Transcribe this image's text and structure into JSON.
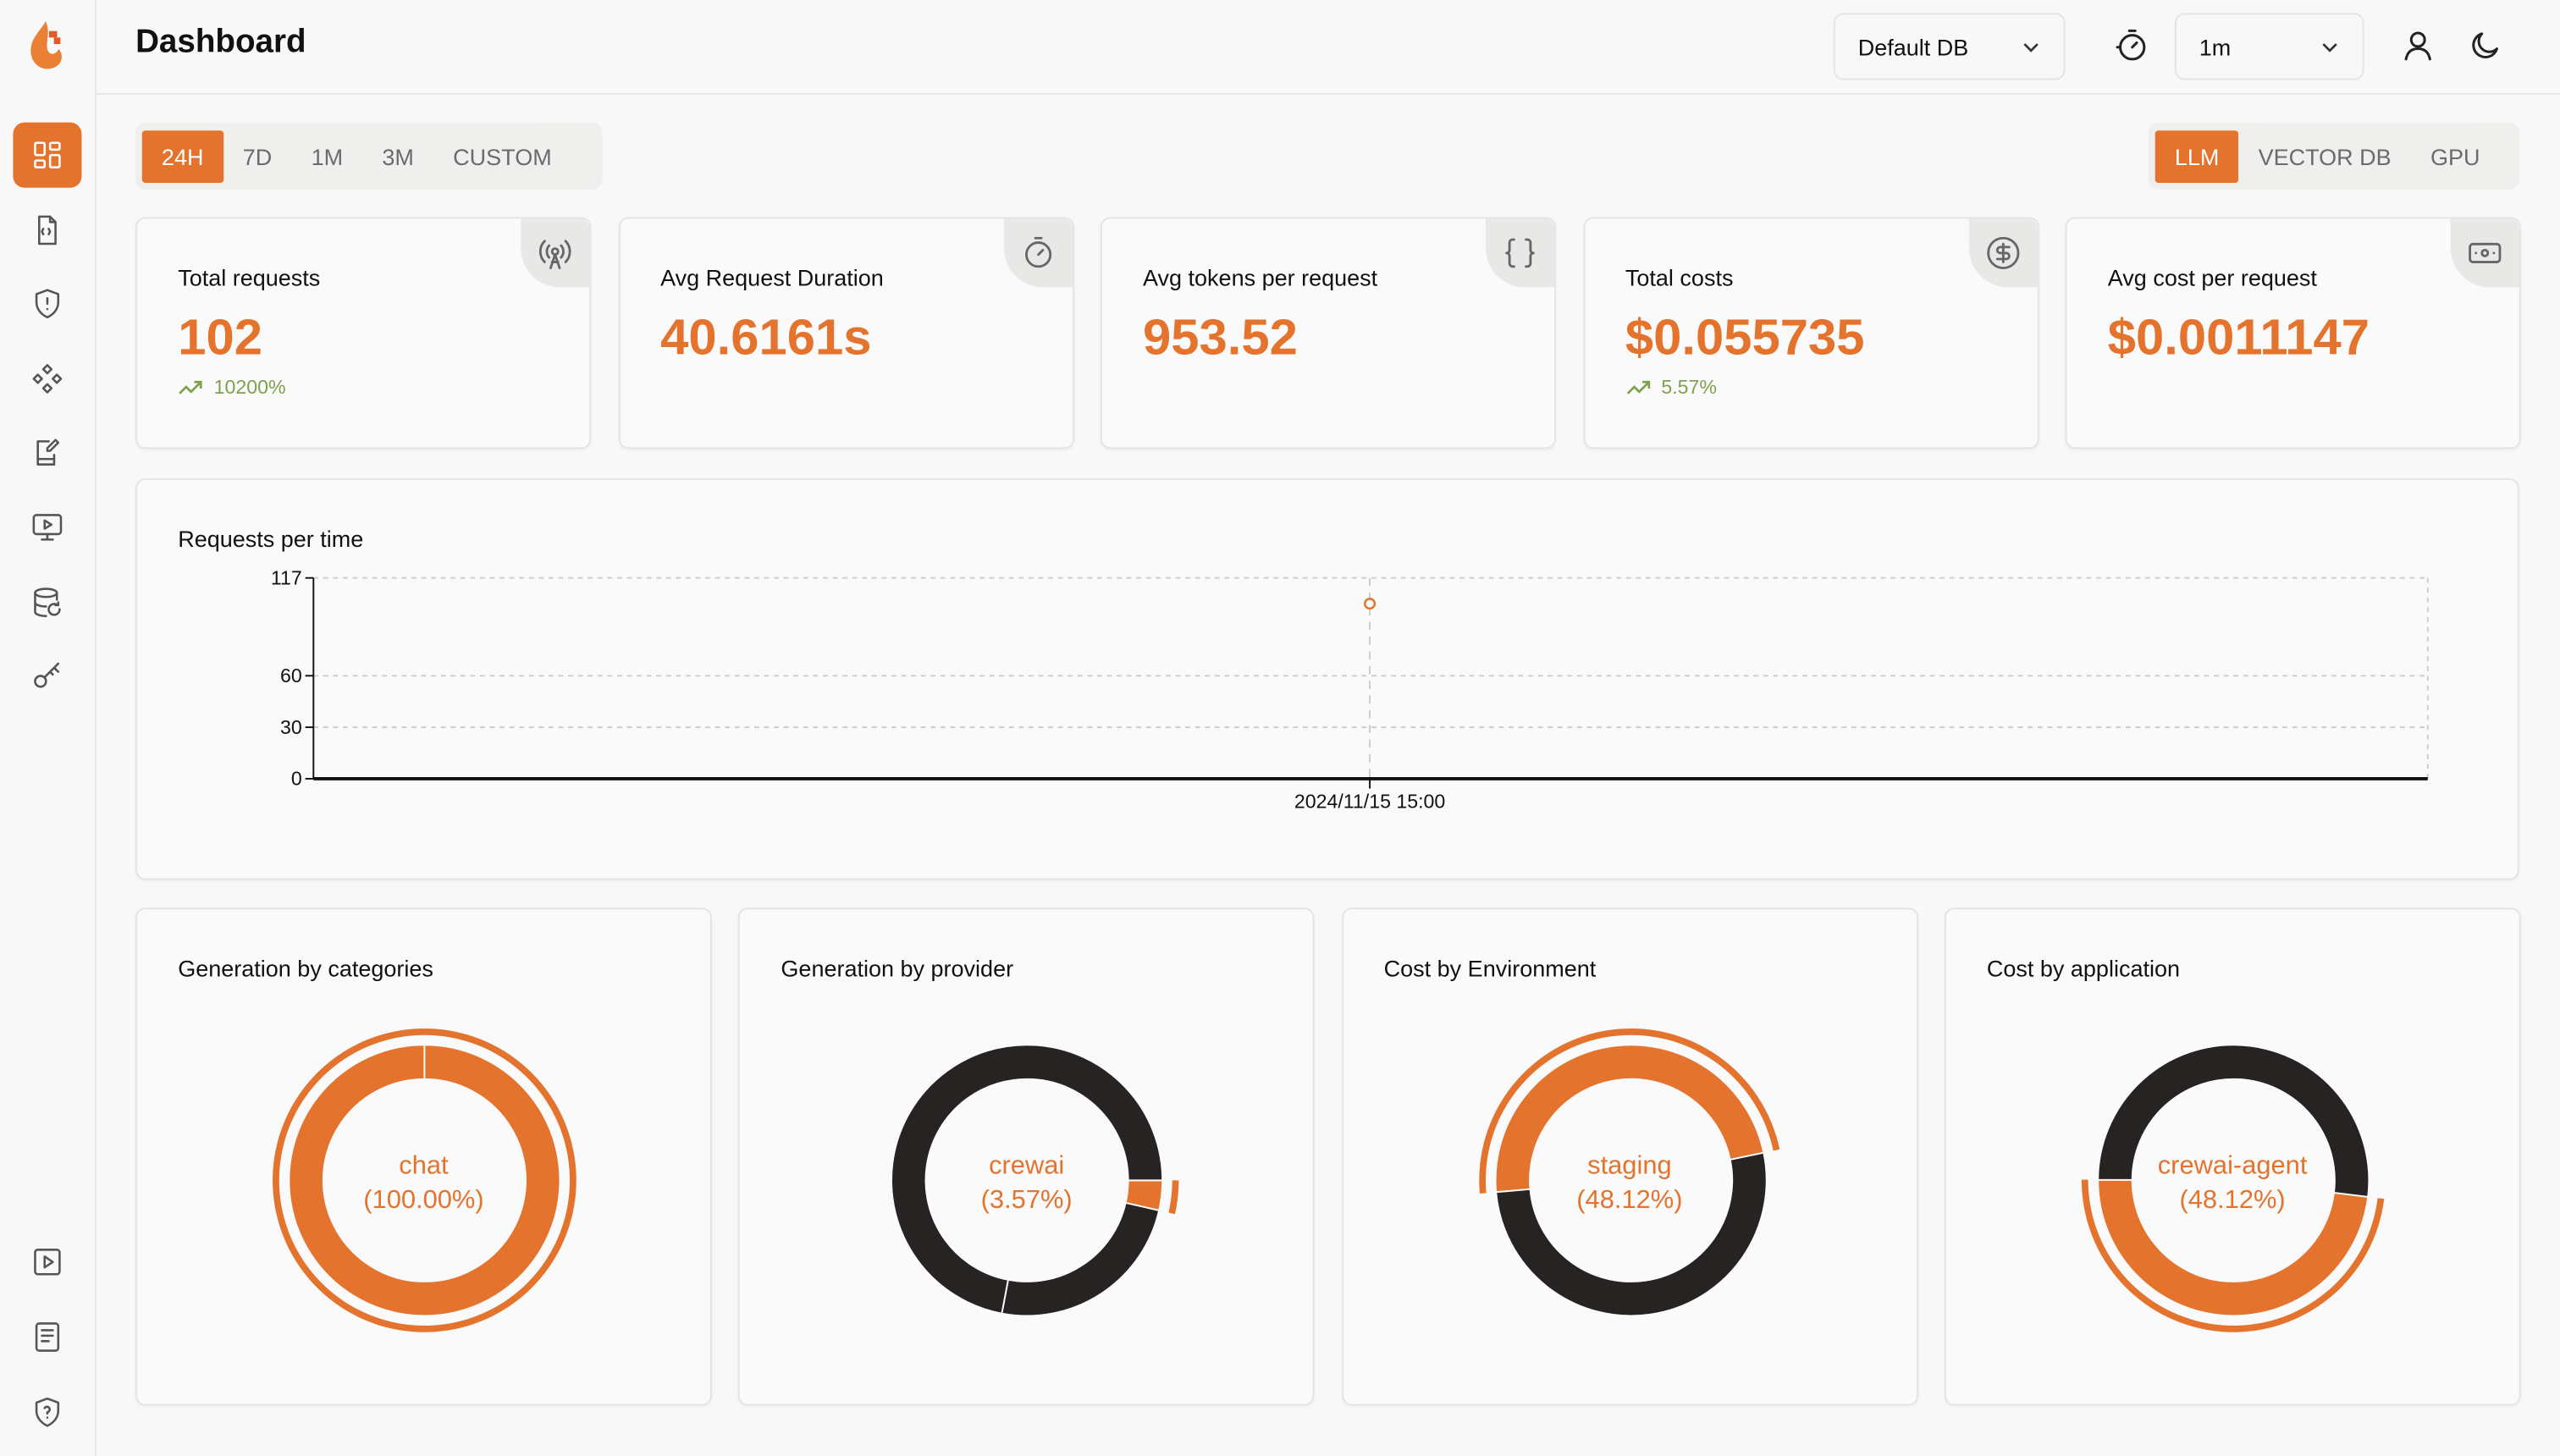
{
  "app": {
    "title": "Dashboard",
    "logo": "flame-logo"
  },
  "sidebar": {
    "items": [
      {
        "icon": "dashboard-grid-icon",
        "active": true
      },
      {
        "icon": "code-file-icon"
      },
      {
        "icon": "shield-alert-icon"
      },
      {
        "icon": "components-icon"
      },
      {
        "icon": "notebook-pen-icon"
      },
      {
        "icon": "monitor-play-icon"
      },
      {
        "icon": "database-refresh-icon"
      },
      {
        "icon": "key-icon"
      }
    ],
    "bottom_items": [
      {
        "icon": "play-square-icon"
      },
      {
        "icon": "document-icon"
      },
      {
        "icon": "shield-question-icon"
      }
    ]
  },
  "header": {
    "db_select": "Default DB",
    "refresh_icon": "timer-refresh-icon",
    "interval_select": "1m",
    "user_icon": "user-icon",
    "theme_icon": "moon-icon"
  },
  "time_tabs": {
    "items": [
      "24H",
      "7D",
      "1M",
      "3M",
      "CUSTOM"
    ],
    "active": "24H"
  },
  "type_tabs": {
    "items": [
      "LLM",
      "VECTOR DB",
      "GPU"
    ],
    "active": "LLM"
  },
  "colors": {
    "accent": "#e4732e",
    "dark": "#272322",
    "positive": "#7fa04c"
  },
  "stats": [
    {
      "label": "Total requests",
      "value": "102",
      "delta": "10200%",
      "icon": "broadcast-tower-icon"
    },
    {
      "label": "Avg Request Duration",
      "value": "40.6161s",
      "delta": null,
      "icon": "stopwatch-icon"
    },
    {
      "label": "Avg tokens per request",
      "value": "953.52",
      "delta": null,
      "icon": "braces-icon"
    },
    {
      "label": "Total costs",
      "value": "$0.055735",
      "delta": "5.57%",
      "icon": "dollar-circle-icon"
    },
    {
      "label": "Avg cost per request",
      "value": "$0.0011147",
      "delta": null,
      "icon": "banknote-icon"
    }
  ],
  "chart_data": [
    {
      "type": "line",
      "title": "Requests per time",
      "x": [
        "2024/11/15 15:00"
      ],
      "values": [
        102
      ],
      "yticks": [
        0,
        30,
        60,
        117
      ],
      "ylim": [
        0,
        117
      ],
      "grid": true
    },
    {
      "type": "pie",
      "title": "Generation by categories",
      "center_label": "chat",
      "center_value": "(100.00%)",
      "values": [
        100
      ],
      "highlight": 0
    },
    {
      "type": "pie",
      "title": "Generation by provider",
      "center_label": "crewai",
      "center_value": "(3.57%)",
      "values": [
        3.57,
        24.4,
        72.03
      ],
      "highlight": 0
    },
    {
      "type": "pie",
      "title": "Cost by Environment",
      "center_label": "staging",
      "center_value": "(48.12%)",
      "values": [
        48.12,
        51.88
      ],
      "highlight": 0
    },
    {
      "type": "pie",
      "title": "Cost by application",
      "center_label": "crewai-agent",
      "center_value": "(48.12%)",
      "values": [
        48.12,
        51.88
      ],
      "highlight": 0
    }
  ]
}
